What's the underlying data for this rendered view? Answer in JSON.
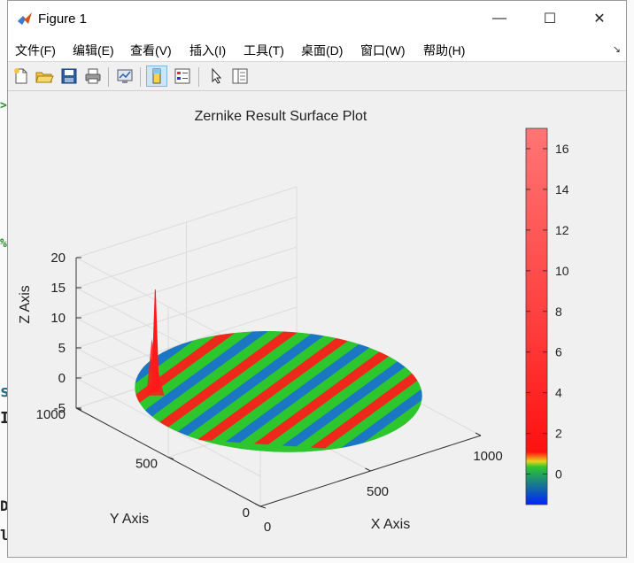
{
  "window": {
    "title": "Figure 1",
    "controls": [
      "—",
      "☐",
      "✕"
    ]
  },
  "menu": {
    "items": [
      "文件(F)",
      "编辑(E)",
      "查看(V)",
      "插入(I)",
      "工具(T)",
      "桌面(D)",
      "窗口(W)",
      "帮助(H)"
    ],
    "corner_glyph": "↘"
  },
  "toolbar": {
    "icons": [
      "new-figure-icon",
      "open-file-icon",
      "save-icon",
      "print-icon",
      "link-plot-icon",
      "insert-colorbar-icon",
      "insert-legend-icon",
      "edit-pointer-icon",
      "property-inspector-icon"
    ]
  },
  "background_glyphs": [
    ">",
    "%",
    "s",
    "I",
    "Da",
    "lo"
  ],
  "plot": {
    "title": "Zernike Result Surface Plot",
    "xlabel": "X Axis",
    "ylabel": "Y Axis",
    "zlabel": "Z Axis",
    "z_ticks": [
      "20",
      "15",
      "10",
      "5",
      "0",
      "-5"
    ],
    "y_ticks": [
      "1000",
      "500",
      "0"
    ],
    "x_ticks": [
      "0",
      "500",
      "1000"
    ],
    "colorbar_ticks": [
      "16",
      "14",
      "12",
      "10",
      "8",
      "6",
      "4",
      "2",
      "0"
    ],
    "colors": {
      "red": "#ff1a1a",
      "green": "#2ec52e",
      "blue": "#1a6fd0",
      "yellow": "#e8d21c",
      "colorbar_top": "#ff7070",
      "colorbar_bottom": "#0022ff"
    }
  },
  "chart_data": {
    "type": "surface",
    "title": "Zernike Result Surface Plot",
    "xlabel": "X Axis",
    "ylabel": "Y Axis",
    "zlabel": "Z Axis",
    "xlim": [
      0,
      1000
    ],
    "ylim": [
      0,
      1000
    ],
    "zlim": [
      -5,
      20
    ],
    "clim": [
      -1.5,
      17
    ],
    "surface": {
      "shape": "disk",
      "baseline_z": 0,
      "pattern": "diagonal fringes alternating red / green / blue",
      "peak": {
        "x": 150,
        "y": 750,
        "z": 17
      }
    },
    "grid": true,
    "colorbar": {
      "location": "right",
      "ticks": [
        0,
        2,
        4,
        6,
        8,
        10,
        12,
        14,
        16
      ]
    }
  }
}
